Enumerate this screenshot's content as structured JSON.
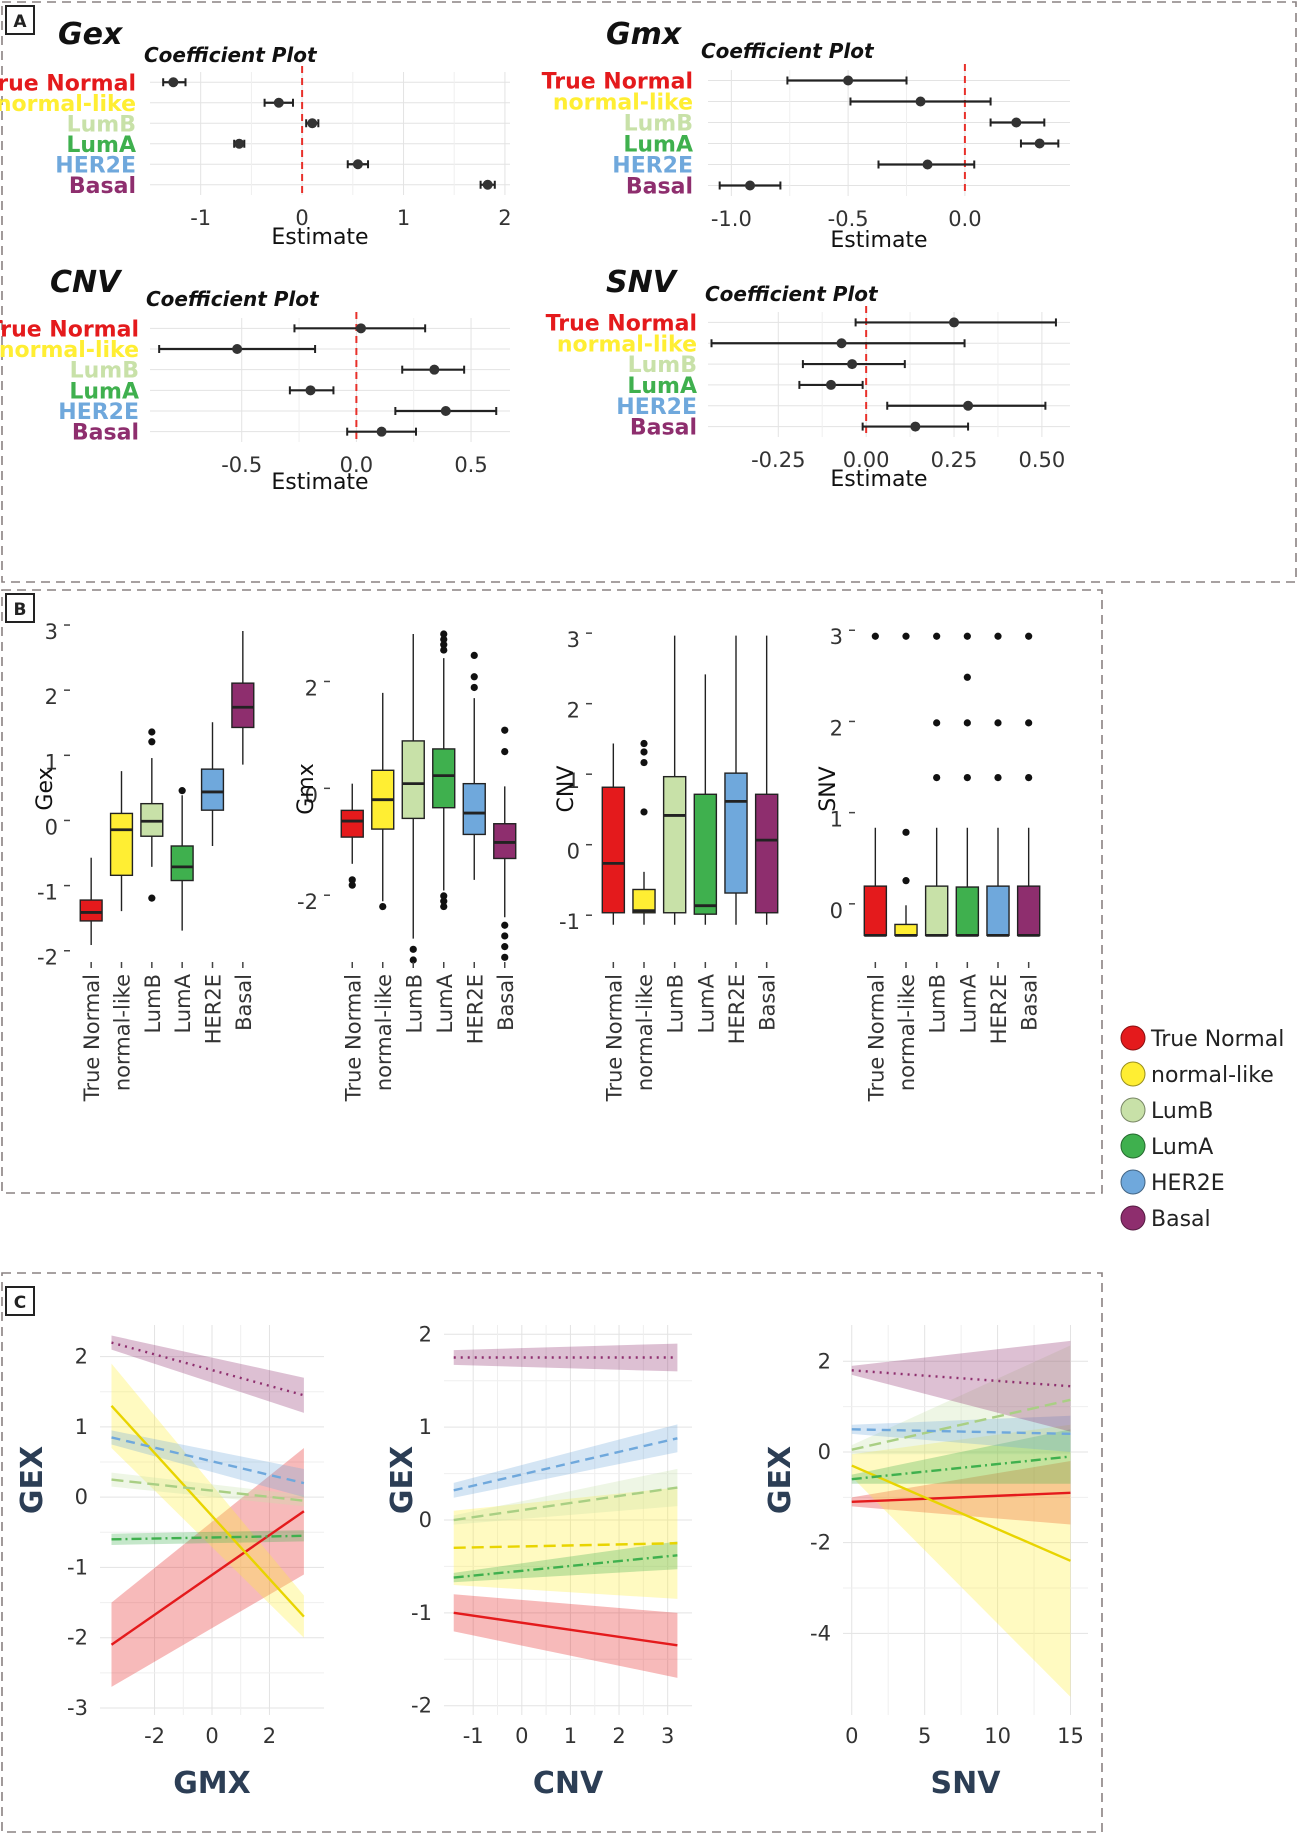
{
  "panel_tags": [
    "A",
    "B",
    "C"
  ],
  "colors": {
    "True Normal": "#e41a1c",
    "normal-like": "#ffee33",
    "LumB": "#c8e1a8",
    "LumA": "#3fb04e",
    "HER2E": "#6fa8dc",
    "Basal": "#8e2e6e"
  },
  "legend": {
    "items": [
      "True Normal",
      "normal-like",
      "LumB",
      "LumA",
      "HER2E",
      "Basal"
    ]
  },
  "chart_data": [
    {
      "id": "coef-gex",
      "type": "forest",
      "name": "Gex",
      "title": "Coefficient Plot",
      "xlabel": "Estimate",
      "xlim": [
        -1.5,
        2.05
      ],
      "xticks": [
        -1,
        0,
        1,
        2
      ],
      "xtick_labels": [
        "-1",
        "0",
        "1",
        "2"
      ],
      "categories": [
        "True Normal",
        "normal-like",
        "LumB",
        "LumA",
        "HER2E",
        "Basal"
      ],
      "estimates": [
        -1.27,
        -0.23,
        0.1,
        -0.62,
        0.55,
        1.83
      ],
      "lower": [
        -1.37,
        -0.37,
        0.04,
        -0.67,
        0.45,
        1.76
      ],
      "upper": [
        -1.15,
        -0.09,
        0.16,
        -0.57,
        0.65,
        1.9
      ],
      "ref_line": 0
    },
    {
      "id": "coef-gmx",
      "type": "forest",
      "name": "Gmx",
      "title": "Coefficient Plot",
      "xlabel": "Estimate",
      "xlim": [
        -1.1,
        0.45
      ],
      "xticks": [
        -1.0,
        -0.5,
        0.0
      ],
      "xtick_labels": [
        "-1.0",
        "-0.5",
        "0.0"
      ],
      "categories": [
        "True Normal",
        "normal-like",
        "LumB",
        "LumA",
        "HER2E",
        "Basal"
      ],
      "estimates": [
        -0.5,
        -0.19,
        0.22,
        0.32,
        -0.16,
        -0.92
      ],
      "lower": [
        -0.76,
        -0.49,
        0.11,
        0.24,
        -0.37,
        -1.05
      ],
      "upper": [
        -0.25,
        0.11,
        0.34,
        0.4,
        0.04,
        -0.79
      ],
      "ref_line": 0
    },
    {
      "id": "coef-cnv",
      "type": "forest",
      "name": "CNV",
      "title": "Coefficient Plot",
      "xlabel": "Estimate",
      "xlim": [
        -0.9,
        0.67
      ],
      "xticks": [
        -0.5,
        0.0,
        0.5
      ],
      "xtick_labels": [
        "-0.5",
        "0.0",
        "0.5"
      ],
      "categories": [
        "True Normal",
        "normal-like",
        "LumB",
        "LumA",
        "HER2E",
        "Basal"
      ],
      "estimates": [
        0.02,
        -0.52,
        0.34,
        -0.2,
        0.39,
        0.11
      ],
      "lower": [
        -0.27,
        -0.86,
        0.2,
        -0.29,
        0.17,
        -0.04
      ],
      "upper": [
        0.3,
        -0.18,
        0.47,
        -0.1,
        0.61,
        0.26
      ],
      "ref_line": 0
    },
    {
      "id": "coef-snv",
      "type": "forest",
      "name": "SNV",
      "title": "Coefficient Plot",
      "xlabel": "Estimate",
      "xlim": [
        -0.45,
        0.58
      ],
      "xticks": [
        -0.25,
        0.0,
        0.25,
        0.5
      ],
      "xtick_labels": [
        "-0.25",
        "0.00",
        "0.25",
        "0.50"
      ],
      "categories": [
        "True Normal",
        "normal-like",
        "LumB",
        "LumA",
        "HER2E",
        "Basal"
      ],
      "estimates": [
        0.25,
        -0.07,
        -0.04,
        -0.1,
        0.29,
        0.14
      ],
      "lower": [
        -0.03,
        -0.44,
        -0.18,
        -0.19,
        0.06,
        -0.01
      ],
      "upper": [
        0.54,
        0.28,
        0.11,
        -0.01,
        0.51,
        0.29
      ],
      "ref_line": 0
    },
    {
      "id": "box-gex",
      "type": "box",
      "ylabel": "Gex",
      "ylim": [
        -2.05,
        3.2
      ],
      "yticks": [
        -2,
        -1,
        0,
        1,
        2,
        3
      ],
      "categories": [
        "True Normal",
        "normal-like",
        "LumB",
        "LumA",
        "HER2E",
        "Basal"
      ],
      "boxes": [
        {
          "q1": -1.45,
          "median": -1.32,
          "q3": -1.13,
          "whislo": -1.82,
          "whishi": -0.48,
          "fliers": []
        },
        {
          "q1": -0.75,
          "median": -0.05,
          "q3": 0.2,
          "whislo": -1.3,
          "whishi": 0.85,
          "fliers": []
        },
        {
          "q1": -0.15,
          "median": 0.08,
          "q3": 0.35,
          "whislo": -0.62,
          "whishi": 1.05,
          "fliers": [
            1.45,
            1.3,
            -1.1
          ]
        },
        {
          "q1": -0.83,
          "median": -0.62,
          "q3": -0.3,
          "whislo": -1.6,
          "whishi": 0.48,
          "fliers": [
            0.55
          ]
        },
        {
          "q1": 0.25,
          "median": 0.53,
          "q3": 0.88,
          "whislo": -0.3,
          "whishi": 1.6,
          "fliers": []
        },
        {
          "q1": 1.52,
          "median": 1.83,
          "q3": 2.2,
          "whislo": 0.95,
          "whishi": 3.0,
          "fliers": []
        }
      ]
    },
    {
      "id": "box-gmx",
      "type": "box",
      "ylabel": "Gmx",
      "ylim": [
        -3.1,
        3.3
      ],
      "yticks": [
        -2,
        0,
        2
      ],
      "categories": [
        "True Normal",
        "normal-like",
        "LumB",
        "LumA",
        "HER2E",
        "Basal"
      ],
      "boxes": [
        {
          "q1": -0.8,
          "median": -0.5,
          "q3": -0.3,
          "whislo": -1.3,
          "whishi": 0.2,
          "fliers": [
            -1.6,
            -1.7
          ]
        },
        {
          "q1": -0.65,
          "median": -0.1,
          "q3": 0.45,
          "whislo": -2.0,
          "whishi": 1.9,
          "fliers": [
            -2.1
          ]
        },
        {
          "q1": -0.45,
          "median": 0.2,
          "q3": 1.0,
          "whislo": -2.7,
          "whishi": 3.0,
          "fliers": [
            -2.9,
            -3.1
          ]
        },
        {
          "q1": -0.25,
          "median": 0.35,
          "q3": 0.85,
          "whislo": -1.8,
          "whishi": 2.55,
          "fliers": [
            3.0,
            2.9,
            2.8,
            2.7,
            -1.9,
            -2.0,
            -2.1
          ]
        },
        {
          "q1": -0.75,
          "median": -0.35,
          "q3": 0.2,
          "whislo": -1.6,
          "whishi": 1.8,
          "fliers": [
            2.6,
            2.2,
            2.0
          ]
        },
        {
          "q1": -1.2,
          "median": -0.9,
          "q3": -0.55,
          "whislo": -2.3,
          "whishi": 0.15,
          "fliers": [
            1.2,
            0.8,
            -2.45,
            -2.65,
            -2.85,
            -3.05
          ]
        }
      ]
    },
    {
      "id": "box-cnv",
      "type": "box",
      "ylabel": "CNV",
      "ylim": [
        -1.55,
        3.3
      ],
      "yticks": [
        -1,
        0,
        1,
        2,
        3
      ],
      "categories": [
        "True Normal",
        "normal-like",
        "LumB",
        "LumA",
        "HER2E",
        "Basal"
      ],
      "boxes": [
        {
          "q1": -0.88,
          "median": -0.18,
          "q3": 0.9,
          "whislo": -1.05,
          "whishi": 1.52,
          "fliers": []
        },
        {
          "q1": -0.88,
          "median": -0.85,
          "q3": -0.55,
          "whislo": -1.05,
          "whishi": -0.3,
          "fliers": [
            1.52,
            1.4,
            1.25,
            0.55
          ]
        },
        {
          "q1": -0.88,
          "median": 0.5,
          "q3": 1.05,
          "whislo": -1.05,
          "whishi": 3.05,
          "fliers": []
        },
        {
          "q1": -0.9,
          "median": -0.78,
          "q3": 0.8,
          "whislo": -1.05,
          "whishi": 2.5,
          "fliers": []
        },
        {
          "q1": -0.6,
          "median": 0.7,
          "q3": 1.1,
          "whislo": -1.05,
          "whishi": 3.05,
          "fliers": []
        },
        {
          "q1": -0.88,
          "median": 0.15,
          "q3": 0.8,
          "whislo": -1.05,
          "whishi": 3.05,
          "fliers": []
        }
      ]
    },
    {
      "id": "box-snv",
      "type": "box",
      "ylabel": "SNV",
      "ylim": [
        -0.55,
        3.2
      ],
      "yticks": [
        0,
        1,
        2,
        3
      ],
      "categories": [
        "True Normal",
        "normal-like",
        "LumB",
        "LumA",
        "HER2E",
        "Basal"
      ],
      "boxes": [
        {
          "q1": -0.28,
          "median": -0.28,
          "q3": 0.26,
          "whislo": -0.28,
          "whishi": 0.9,
          "fliers": [
            3.0
          ]
        },
        {
          "q1": -0.28,
          "median": -0.28,
          "q3": -0.16,
          "whislo": -0.28,
          "whishi": 0.05,
          "fliers": [
            3.0,
            0.85,
            0.32
          ]
        },
        {
          "q1": -0.28,
          "median": -0.28,
          "q3": 0.26,
          "whislo": -0.28,
          "whishi": 0.9,
          "fliers": [
            3.0,
            2.05,
            1.45
          ]
        },
        {
          "q1": -0.28,
          "median": -0.28,
          "q3": 0.25,
          "whislo": -0.28,
          "whishi": 0.9,
          "fliers": [
            3.0,
            2.55,
            2.05,
            1.45
          ]
        },
        {
          "q1": -0.28,
          "median": -0.28,
          "q3": 0.26,
          "whislo": -0.28,
          "whishi": 0.9,
          "fliers": [
            3.0,
            2.05,
            1.45
          ]
        },
        {
          "q1": -0.28,
          "median": -0.28,
          "q3": 0.26,
          "whislo": -0.28,
          "whishi": 0.9,
          "fliers": [
            3.0,
            2.05,
            1.45
          ]
        }
      ]
    },
    {
      "id": "inter-gmx",
      "type": "line",
      "xlabel": "GMX",
      "ylabel": "GEX",
      "xlim": [
        -3.9,
        3.9
      ],
      "ylim": [
        -3.1,
        2.45
      ],
      "xticks": [
        -2,
        0,
        2
      ],
      "yticks": [
        -3,
        -2,
        -1,
        0,
        1,
        2
      ],
      "series": [
        {
          "name": "True Normal",
          "x": [
            -3.5,
            3.2
          ],
          "y": [
            -2.1,
            -0.2
          ],
          "band": [
            0.6,
            0.9
          ],
          "dash": "solid"
        },
        {
          "name": "normal-like",
          "x": [
            -3.5,
            3.2
          ],
          "y": [
            1.3,
            -1.7
          ],
          "band": [
            0.6,
            0.3
          ],
          "dash": "solid"
        },
        {
          "name": "LumB",
          "x": [
            -3.5,
            3.2
          ],
          "y": [
            0.25,
            -0.05
          ],
          "band": [
            0.1,
            0.08
          ],
          "dash": "longdash"
        },
        {
          "name": "LumA",
          "x": [
            -3.5,
            3.2
          ],
          "y": [
            -0.6,
            -0.55
          ],
          "band": [
            0.08,
            0.08
          ],
          "dash": "dotdash"
        },
        {
          "name": "HER2E",
          "x": [
            -3.5,
            3.2
          ],
          "y": [
            0.85,
            0.2
          ],
          "band": [
            0.1,
            0.2
          ],
          "dash": "dashed"
        },
        {
          "name": "Basal",
          "x": [
            -3.5,
            3.2
          ],
          "y": [
            2.2,
            1.45
          ],
          "band": [
            0.1,
            0.25
          ],
          "dash": "dotted"
        }
      ]
    },
    {
      "id": "inter-cnv",
      "type": "line",
      "xlabel": "CNV",
      "ylabel": "GEX",
      "xlim": [
        -1.6,
        3.5
      ],
      "ylim": [
        -2.1,
        2.1
      ],
      "xticks": [
        -1,
        0,
        1,
        2,
        3
      ],
      "yticks": [
        -2,
        -1,
        0,
        1,
        2
      ],
      "series": [
        {
          "name": "True Normal",
          "x": [
            -1.4,
            3.2
          ],
          "y": [
            -1.0,
            -1.35
          ],
          "band": [
            0.2,
            0.35
          ],
          "dash": "solid"
        },
        {
          "name": "normal-like",
          "x": [
            -1.4,
            3.2
          ],
          "y": [
            -0.3,
            -0.25
          ],
          "band": [
            0.4,
            0.6
          ],
          "dash": "longdash"
        },
        {
          "name": "LumB",
          "x": [
            -1.4,
            3.2
          ],
          "y": [
            0.0,
            0.35
          ],
          "band": [
            0.05,
            0.2
          ],
          "dash": "longdash"
        },
        {
          "name": "LumA",
          "x": [
            -1.4,
            3.2
          ],
          "y": [
            -0.62,
            -0.38
          ],
          "band": [
            0.05,
            0.15
          ],
          "dash": "dotdash"
        },
        {
          "name": "HER2E",
          "x": [
            -1.4,
            3.2
          ],
          "y": [
            0.32,
            0.88
          ],
          "band": [
            0.08,
            0.15
          ],
          "dash": "dashed"
        },
        {
          "name": "Basal",
          "x": [
            -1.4,
            3.2
          ],
          "y": [
            1.75,
            1.75
          ],
          "band": [
            0.08,
            0.15
          ],
          "dash": "dotted"
        }
      ]
    },
    {
      "id": "inter-snv",
      "type": "line",
      "xlabel": "SNV",
      "ylabel": "GEX",
      "xlim": [
        -0.6,
        16.2
      ],
      "ylim": [
        -5.8,
        2.8
      ],
      "xticks": [
        0,
        5,
        10,
        15
      ],
      "yticks": [
        -4,
        -2,
        0,
        2
      ],
      "series": [
        {
          "name": "True Normal",
          "x": [
            0,
            15
          ],
          "y": [
            -1.1,
            -0.9
          ],
          "band": [
            0.1,
            0.7
          ],
          "dash": "solid"
        },
        {
          "name": "normal-like",
          "x": [
            0,
            15
          ],
          "y": [
            -0.3,
            -2.4
          ],
          "band": [
            0.25,
            3.0
          ],
          "dash": "solid"
        },
        {
          "name": "LumB",
          "x": [
            0,
            15
          ],
          "y": [
            0.05,
            1.15
          ],
          "band": [
            0.1,
            1.2
          ],
          "dash": "longdash"
        },
        {
          "name": "LumA",
          "x": [
            0,
            15
          ],
          "y": [
            -0.6,
            -0.1
          ],
          "band": [
            0.1,
            0.6
          ],
          "dash": "dotdash"
        },
        {
          "name": "HER2E",
          "x": [
            0,
            15
          ],
          "y": [
            0.5,
            0.4
          ],
          "band": [
            0.1,
            0.4
          ],
          "dash": "dashed"
        },
        {
          "name": "Basal",
          "x": [
            0,
            15
          ],
          "y": [
            1.8,
            1.45
          ],
          "band": [
            0.1,
            1.0
          ],
          "dash": "dotted"
        }
      ]
    }
  ]
}
